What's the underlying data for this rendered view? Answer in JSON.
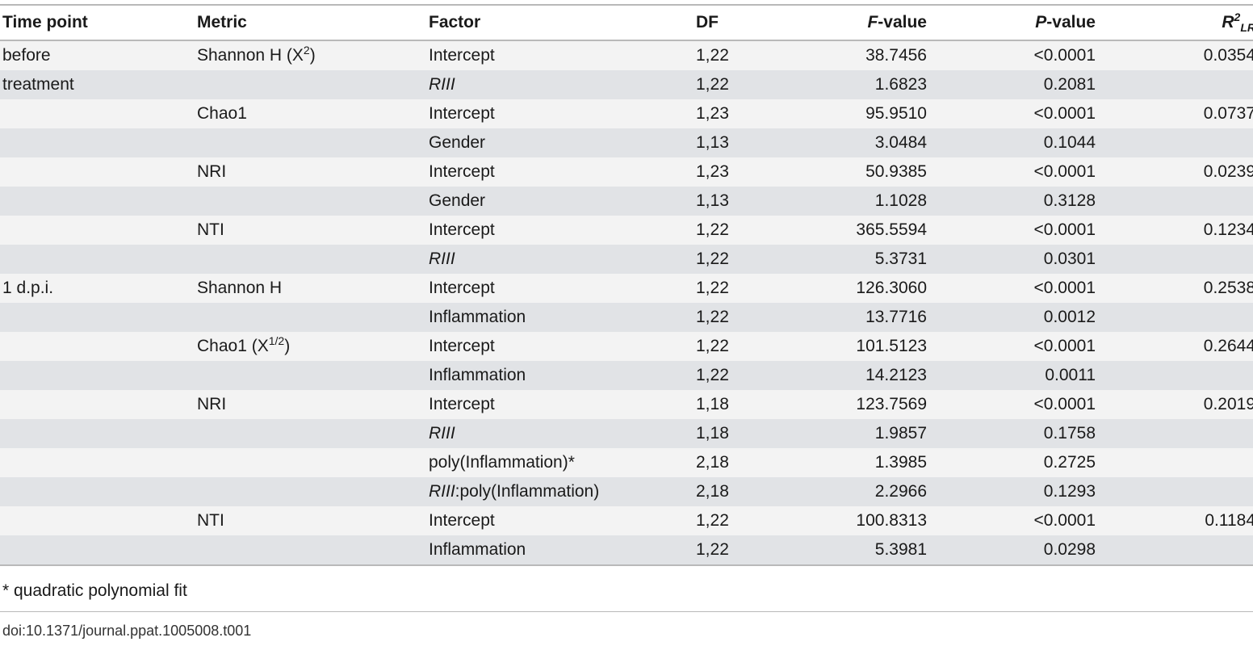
{
  "headers": {
    "time_point": "Time point",
    "metric": "Metric",
    "factor": "Factor",
    "df": "DF",
    "f_value_italic": "F",
    "f_value_rest": "-value",
    "p_value_italic": "P",
    "p_value_rest": "-value",
    "r2_base": "R",
    "r2_sup": "2",
    "r2_sub": "LR"
  },
  "rows": [
    {
      "time": "before",
      "metric": "Shannon H (X",
      "metric_sup": "2",
      "metric_tail": ")",
      "factor_it": "",
      "factor": "Intercept",
      "df": "1,22",
      "f": "38.7456",
      "p": "<0.0001",
      "r2": "0.0354"
    },
    {
      "time": "treatment",
      "metric": "",
      "metric_sup": "",
      "metric_tail": "",
      "factor_it": "RIII",
      "factor": "",
      "df": "1,22",
      "f": "1.6823",
      "p": "0.2081",
      "r2": ""
    },
    {
      "time": "",
      "metric": "Chao1",
      "metric_sup": "",
      "metric_tail": "",
      "factor_it": "",
      "factor": "Intercept",
      "df": "1,23",
      "f": "95.9510",
      "p": "<0.0001",
      "r2": "0.0737"
    },
    {
      "time": "",
      "metric": "",
      "metric_sup": "",
      "metric_tail": "",
      "factor_it": "",
      "factor": "Gender",
      "df": "1,13",
      "f": "3.0484",
      "p": "0.1044",
      "r2": ""
    },
    {
      "time": "",
      "metric": "NRI",
      "metric_sup": "",
      "metric_tail": "",
      "factor_it": "",
      "factor": "Intercept",
      "df": "1,23",
      "f": "50.9385",
      "p": "<0.0001",
      "r2": "0.0239"
    },
    {
      "time": "",
      "metric": "",
      "metric_sup": "",
      "metric_tail": "",
      "factor_it": "",
      "factor": "Gender",
      "df": "1,13",
      "f": "1.1028",
      "p": "0.3128",
      "r2": ""
    },
    {
      "time": "",
      "metric": "NTI",
      "metric_sup": "",
      "metric_tail": "",
      "factor_it": "",
      "factor": "Intercept",
      "df": "1,22",
      "f": "365.5594",
      "p": "<0.0001",
      "r2": "0.1234"
    },
    {
      "time": "",
      "metric": "",
      "metric_sup": "",
      "metric_tail": "",
      "factor_it": "RIII",
      "factor": "",
      "df": "1,22",
      "f": "5.3731",
      "p": "0.0301",
      "r2": ""
    },
    {
      "time": "1 d.p.i.",
      "metric": "Shannon H",
      "metric_sup": "",
      "metric_tail": "",
      "factor_it": "",
      "factor": "Intercept",
      "df": "1,22",
      "f": "126.3060",
      "p": "<0.0001",
      "r2": "0.2538"
    },
    {
      "time": "",
      "metric": "",
      "metric_sup": "",
      "metric_tail": "",
      "factor_it": "",
      "factor": "Inflammation",
      "df": "1,22",
      "f": "13.7716",
      "p": "0.0012",
      "r2": ""
    },
    {
      "time": "",
      "metric": "Chao1 (X",
      "metric_sup": "1/2",
      "metric_tail": ")",
      "factor_it": "",
      "factor": "Intercept",
      "df": "1,22",
      "f": "101.5123",
      "p": "<0.0001",
      "r2": "0.2644"
    },
    {
      "time": "",
      "metric": "",
      "metric_sup": "",
      "metric_tail": "",
      "factor_it": "",
      "factor": "Inflammation",
      "df": "1,22",
      "f": "14.2123",
      "p": "0.0011",
      "r2": ""
    },
    {
      "time": "",
      "metric": "NRI",
      "metric_sup": "",
      "metric_tail": "",
      "factor_it": "",
      "factor": "Intercept",
      "df": "1,18",
      "f": "123.7569",
      "p": "<0.0001",
      "r2": "0.2019"
    },
    {
      "time": "",
      "metric": "",
      "metric_sup": "",
      "metric_tail": "",
      "factor_it": "RIII",
      "factor": "",
      "df": "1,18",
      "f": "1.9857",
      "p": "0.1758",
      "r2": ""
    },
    {
      "time": "",
      "metric": "",
      "metric_sup": "",
      "metric_tail": "",
      "factor_it": "",
      "factor": "poly(Inflammation)*",
      "df": "2,18",
      "f": "1.3985",
      "p": "0.2725",
      "r2": ""
    },
    {
      "time": "",
      "metric": "",
      "metric_sup": "",
      "metric_tail": "",
      "factor_it": "RIII",
      "factor": ":poly(Inflammation)",
      "df": "2,18",
      "f": "2.2966",
      "p": "0.1293",
      "r2": ""
    },
    {
      "time": "",
      "metric": "NTI",
      "metric_sup": "",
      "metric_tail": "",
      "factor_it": "",
      "factor": "Intercept",
      "df": "1,22",
      "f": "100.8313",
      "p": "<0.0001",
      "r2": "0.1184"
    },
    {
      "time": "",
      "metric": "",
      "metric_sup": "",
      "metric_tail": "",
      "factor_it": "",
      "factor": "Inflammation",
      "df": "1,22",
      "f": "5.3981",
      "p": "0.0298",
      "r2": ""
    }
  ],
  "footnote": "* quadratic polynomial fit",
  "doi": "doi:10.1371/journal.ppat.1005008.t001"
}
